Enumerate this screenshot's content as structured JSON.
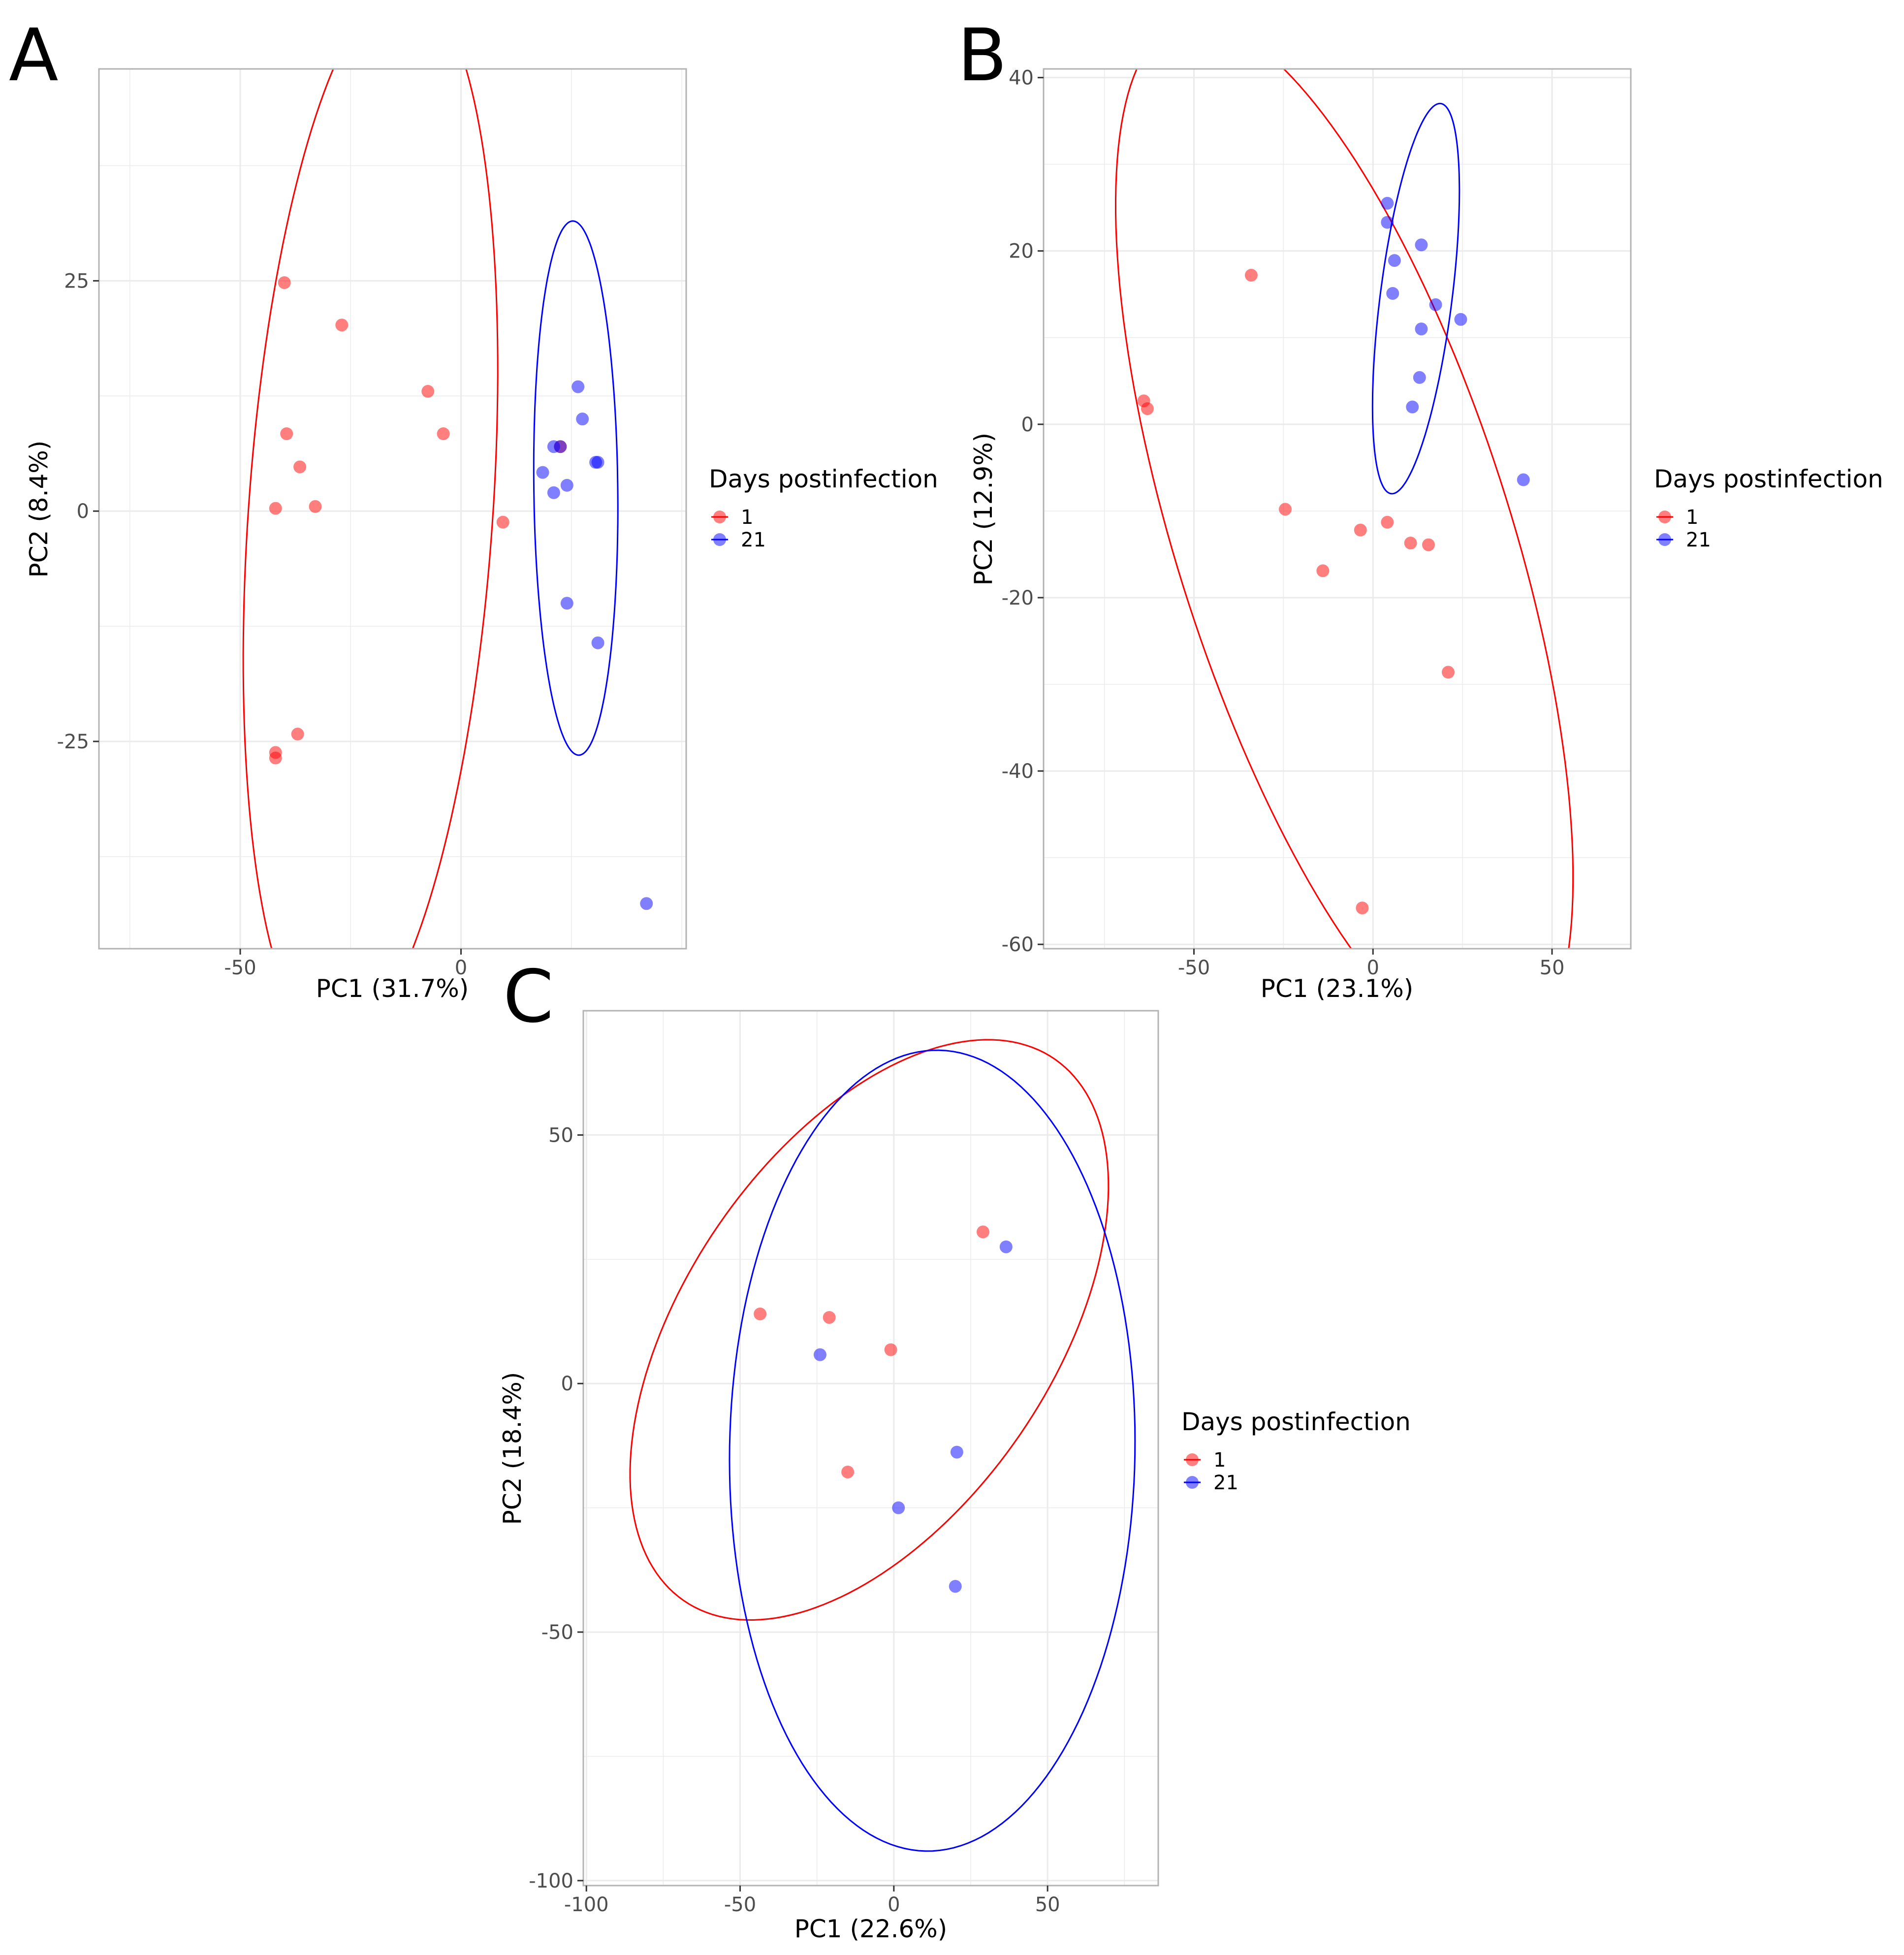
{
  "chart_data": [
    {
      "panel_label": "A",
      "type": "scatter",
      "xlabel": "PC1 (31.7%)",
      "ylabel": "PC2 (8.4%)",
      "xlim": [
        -82,
        51
      ],
      "ylim": [
        -47.5,
        48
      ],
      "xticks": [
        -50,
        0
      ],
      "yticks": [
        -25,
        0,
        25
      ],
      "grid": true,
      "legend": {
        "title": "Days postinfection",
        "position": "right",
        "entries": [
          "1",
          "21"
        ]
      },
      "series": [
        {
          "name": "1",
          "color": "#ff0000",
          "points": [
            [
              -40,
              24.8
            ],
            [
              -27,
              20.2
            ],
            [
              -39.5,
              8.4
            ],
            [
              -36.5,
              4.8
            ],
            [
              -42,
              0.3
            ],
            [
              -33,
              0.5
            ],
            [
              -7.5,
              13
            ],
            [
              -4,
              8.4
            ],
            [
              9.5,
              -1.2
            ],
            [
              -37,
              -24.2
            ],
            [
              -42,
              -26.2
            ],
            [
              -42,
              -26.8
            ],
            [
              22.5,
              7
            ]
          ]
        },
        {
          "name": "21",
          "color": "#0000ff",
          "points": [
            [
              26.5,
              13.5
            ],
            [
              27.5,
              10
            ],
            [
              21,
              7
            ],
            [
              22.5,
              7
            ],
            [
              30.5,
              5.3
            ],
            [
              31,
              5.3
            ],
            [
              18.5,
              4.2
            ],
            [
              24,
              2.8
            ],
            [
              21,
              2
            ],
            [
              24,
              -10
            ],
            [
              31,
              -14.3
            ],
            [
              42,
              -42.6
            ]
          ]
        }
      ],
      "ellipses": [
        {
          "group": "1",
          "color": "#ff0000",
          "cx": -20.5,
          "cy": -0.4,
          "rx": 58.3,
          "ry": 27.4,
          "angle": 80.0
        },
        {
          "group": "21",
          "color": "#0000ff",
          "cx": 26.0,
          "cy": 2.5,
          "rx": 29.0,
          "ry": 9.5,
          "angle": 91.5
        }
      ]
    },
    {
      "panel_label": "B",
      "type": "scatter",
      "xlabel": "PC1 (23.1%)",
      "ylabel": "PC2 (12.9%)",
      "xlim": [
        -92,
        72
      ],
      "ylim": [
        -60.5,
        41
      ],
      "xticks": [
        -50,
        0,
        50
      ],
      "yticks": [
        -60,
        -40,
        -20,
        0,
        20,
        40
      ],
      "grid": true,
      "legend": {
        "title": "Days postinfection",
        "position": "right",
        "entries": [
          "1",
          "21"
        ]
      },
      "series": [
        {
          "name": "1",
          "color": "#ff0000",
          "points": [
            [
              -34,
              17.2
            ],
            [
              -64,
              2.7
            ],
            [
              -63,
              1.8
            ],
            [
              -24.5,
              -9.8
            ],
            [
              -3.5,
              -12.2
            ],
            [
              4,
              -11.3
            ],
            [
              10.5,
              -13.7
            ],
            [
              15.5,
              -13.9
            ],
            [
              -14,
              -16.9
            ],
            [
              21,
              -28.6
            ],
            [
              -3,
              -55.8
            ]
          ]
        },
        {
          "name": "21",
          "color": "#0000ff",
          "points": [
            [
              4,
              25.5
            ],
            [
              4,
              23.3
            ],
            [
              13.5,
              20.7
            ],
            [
              6,
              18.9
            ],
            [
              5.5,
              15.1
            ],
            [
              17.5,
              13.8
            ],
            [
              24.5,
              12.1
            ],
            [
              13.5,
              11
            ],
            [
              13,
              5.4
            ],
            [
              11,
              2
            ],
            [
              42,
              -6.4
            ]
          ]
        }
      ],
      "ellipses": [
        {
          "group": "1",
          "color": "#ff0000",
          "cx": -8,
          "cy": -13.5,
          "rx": 79.6,
          "ry": 36.8,
          "angle": -42.3
        },
        {
          "group": "21",
          "color": "#0000ff",
          "cx": 12,
          "cy": 14.5,
          "rx": 23.7,
          "ry": 9.6,
          "angle": 70.0
        }
      ]
    },
    {
      "panel_label": "C",
      "type": "scatter",
      "xlabel": "PC1 (22.6%)",
      "ylabel": "PC2 (18.4%)",
      "xlim": [
        -101,
        86
      ],
      "ylim": [
        -101,
        75
      ],
      "xticks": [
        -100,
        -50,
        0,
        50
      ],
      "yticks": [
        -100,
        -50,
        0,
        50
      ],
      "grid": true,
      "legend": {
        "title": "Days postinfection",
        "position": "right",
        "entries": [
          "1",
          "21"
        ]
      },
      "series": [
        {
          "name": "1",
          "color": "#ff0000",
          "points": [
            [
              29,
              30.5
            ],
            [
              -43.5,
              14
            ],
            [
              -21,
              13.3
            ],
            [
              -1,
              6.8
            ],
            [
              -15,
              -17.8
            ]
          ]
        },
        {
          "name": "21",
          "color": "#0000ff",
          "points": [
            [
              36.5,
              27.5
            ],
            [
              -24,
              5.8
            ],
            [
              20.5,
              -13.8
            ],
            [
              1.5,
              -25
            ],
            [
              20,
              -40.8
            ]
          ]
        }
      ],
      "ellipses": [
        {
          "group": "1",
          "color": "#ff0000",
          "cx": -8,
          "cy": 10.8,
          "rx": 85.7,
          "ry": 46.0,
          "angle": 29.8
        },
        {
          "group": "21",
          "color": "#0000ff",
          "cx": 12.5,
          "cy": -13.5,
          "rx": 80.6,
          "ry": 65.9,
          "angle": 86.8
        }
      ]
    }
  ]
}
